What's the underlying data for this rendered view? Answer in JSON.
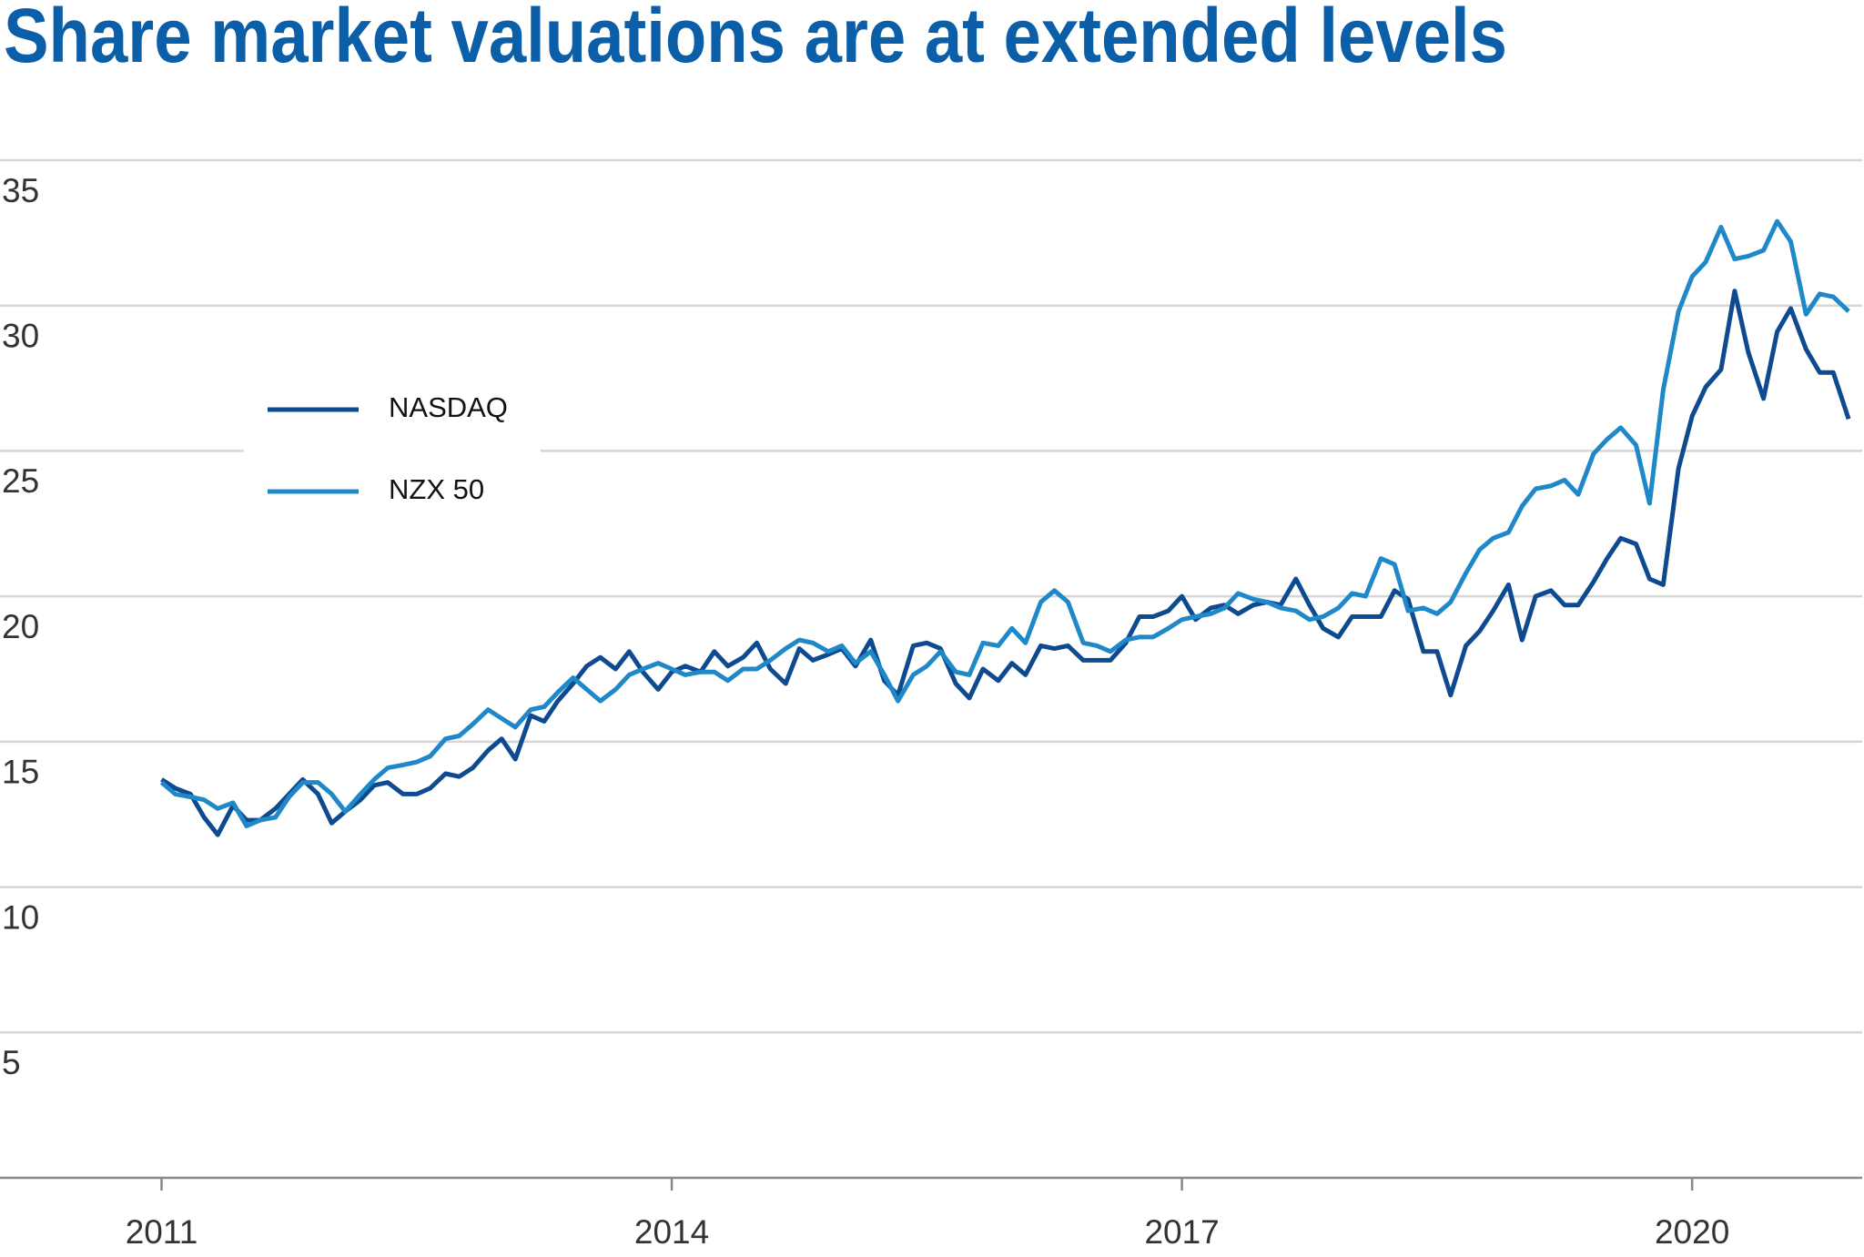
{
  "chart_data": {
    "type": "line",
    "title": "Share market valuations are at extended levels",
    "x": [
      2011,
      2011.08,
      2011.17,
      2011.25,
      2011.33,
      2011.42,
      2011.5,
      2011.58,
      2011.67,
      2011.75,
      2011.83,
      2011.92,
      2012,
      2012.08,
      2012.17,
      2012.25,
      2012.33,
      2012.42,
      2012.5,
      2012.58,
      2012.67,
      2012.75,
      2012.83,
      2012.92,
      2013,
      2013.08,
      2013.17,
      2013.25,
      2013.33,
      2013.42,
      2013.5,
      2013.58,
      2013.67,
      2013.75,
      2013.83,
      2013.92,
      2014,
      2014.08,
      2014.17,
      2014.25,
      2014.33,
      2014.42,
      2014.5,
      2014.58,
      2014.67,
      2014.75,
      2014.83,
      2014.92,
      2015,
      2015.08,
      2015.17,
      2015.25,
      2015.33,
      2015.42,
      2015.5,
      2015.58,
      2015.67,
      2015.75,
      2015.83,
      2015.92,
      2016,
      2016.08,
      2016.17,
      2016.25,
      2016.33,
      2016.42,
      2016.5,
      2016.58,
      2016.67,
      2016.75,
      2016.83,
      2016.92,
      2017,
      2017.08,
      2017.17,
      2017.25,
      2017.33,
      2017.42,
      2017.5,
      2017.58,
      2017.67,
      2017.75,
      2017.83,
      2017.92,
      2018,
      2018.08,
      2018.17,
      2018.25,
      2018.33,
      2018.42,
      2018.5,
      2018.58,
      2018.67,
      2018.75,
      2018.83,
      2018.92,
      2019,
      2019.08,
      2019.17,
      2019.25,
      2019.33,
      2019.42,
      2019.5,
      2019.58,
      2019.67,
      2019.75,
      2019.83,
      2019.92,
      2020,
      2020.08,
      2020.17,
      2020.25,
      2020.33,
      2020.42,
      2020.5,
      2020.58,
      2020.67,
      2020.75,
      2020.83,
      2020.92
    ],
    "series": [
      {
        "name": "NASDAQ",
        "color": "#0d4a8f",
        "values": [
          13.7,
          13.4,
          13.2,
          12.4,
          11.8,
          12.8,
          12.3,
          12.3,
          12.7,
          13.2,
          13.7,
          13.2,
          12.2,
          12.6,
          13.0,
          13.5,
          13.6,
          13.2,
          13.2,
          13.4,
          13.9,
          13.8,
          14.1,
          14.7,
          15.1,
          14.4,
          15.9,
          15.7,
          16.4,
          17.0,
          17.6,
          17.9,
          17.5,
          18.1,
          17.4,
          16.8,
          17.4,
          17.6,
          17.4,
          18.1,
          17.6,
          17.9,
          18.4,
          17.5,
          17.0,
          18.2,
          17.8,
          18.0,
          18.2,
          17.6,
          18.5,
          17.1,
          16.6,
          18.3,
          18.4,
          18.2,
          17.0,
          16.5,
          17.5,
          17.1,
          17.7,
          17.3,
          18.3,
          18.2,
          18.3,
          17.8,
          17.8,
          17.8,
          18.4,
          19.3,
          19.3,
          19.5,
          20.0,
          19.2,
          19.6,
          19.7,
          19.4,
          19.7,
          19.8,
          19.7,
          20.6,
          19.7,
          18.9,
          18.6,
          19.3,
          19.3,
          19.3,
          20.2,
          19.9,
          18.1,
          18.1,
          16.6,
          18.3,
          18.8,
          19.5,
          20.4,
          18.5,
          20.0,
          20.2,
          19.7,
          19.7,
          20.5,
          21.3,
          22.0,
          21.8,
          20.6,
          20.4,
          24.4,
          26.2,
          27.2,
          27.8,
          30.5,
          28.4,
          26.8,
          29.1,
          29.9,
          28.5,
          27.7,
          27.7,
          26.1
        ]
      },
      {
        "name": "NZX 50",
        "color": "#1f88c8",
        "values": [
          13.6,
          13.2,
          13.1,
          13.0,
          12.7,
          12.9,
          12.1,
          12.3,
          12.4,
          13.1,
          13.6,
          13.6,
          13.2,
          12.6,
          13.2,
          13.7,
          14.1,
          14.2,
          14.3,
          14.5,
          15.1,
          15.2,
          15.6,
          16.1,
          15.8,
          15.5,
          16.1,
          16.2,
          16.7,
          17.2,
          16.8,
          16.4,
          16.8,
          17.3,
          17.5,
          17.7,
          17.5,
          17.3,
          17.4,
          17.4,
          17.1,
          17.5,
          17.5,
          17.8,
          18.2,
          18.5,
          18.4,
          18.1,
          18.3,
          17.7,
          18.1,
          17.3,
          16.4,
          17.3,
          17.6,
          18.1,
          17.4,
          17.3,
          18.4,
          18.3,
          18.9,
          18.4,
          19.8,
          20.2,
          19.8,
          18.4,
          18.3,
          18.1,
          18.5,
          18.6,
          18.6,
          18.9,
          19.2,
          19.3,
          19.4,
          19.6,
          20.1,
          19.9,
          19.8,
          19.6,
          19.5,
          19.2,
          19.3,
          19.6,
          20.1,
          20.0,
          21.3,
          21.1,
          19.5,
          19.6,
          19.4,
          19.8,
          20.8,
          21.6,
          22.0,
          22.2,
          23.1,
          23.7,
          23.8,
          24.0,
          23.5,
          24.9,
          25.4,
          25.8,
          25.2,
          23.2,
          27.1,
          29.8,
          31.0,
          31.5,
          32.7,
          31.6,
          31.7,
          31.9,
          32.9,
          32.2,
          29.7,
          30.4,
          30.3,
          29.8
        ]
      }
    ],
    "xlim": [
      2010.05,
      2021
    ],
    "xticks": [
      2011,
      2014,
      2017,
      2020
    ],
    "ylim": [
      0,
      35
    ],
    "yticks": [
      5,
      10,
      15,
      20,
      25,
      30,
      35
    ],
    "grid": true,
    "legend": "upper left"
  }
}
